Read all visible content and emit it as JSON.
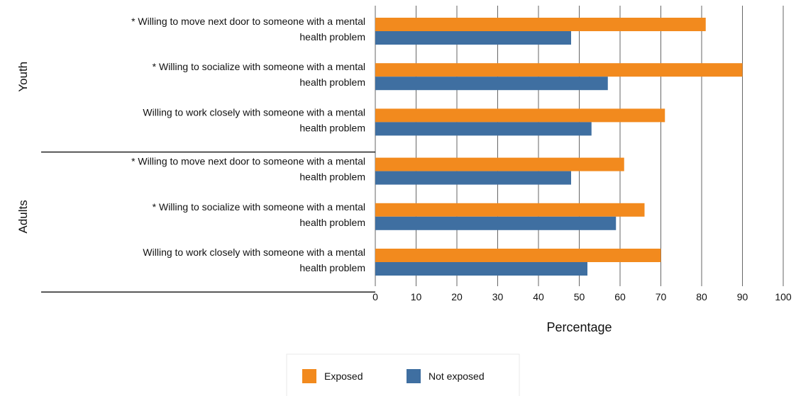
{
  "chart_data": {
    "type": "bar",
    "orientation": "horizontal",
    "groups": [
      {
        "name": "Youth",
        "categories": [
          [
            "* Willing to move next door to someone with a mental",
            "health problem"
          ],
          [
            "* Willing to socialize with someone with a mental",
            "health problem"
          ],
          [
            "Willing to work closely with someone with a mental",
            "health problem"
          ]
        ]
      },
      {
        "name": "Adults",
        "categories": [
          [
            "* Willing to move next door to someone with a mental",
            "health problem"
          ],
          [
            "* Willing to socialize with someone with a mental",
            "health problem"
          ],
          [
            "Willing to work closely with someone with a mental",
            "health problem"
          ]
        ]
      }
    ],
    "series": [
      {
        "name": "Exposed",
        "color": "#f28a1e",
        "values": [
          81,
          90,
          71,
          61,
          66,
          70
        ]
      },
      {
        "name": "Not exposed",
        "color": "#3f6fa1",
        "values": [
          48,
          57,
          53,
          48,
          59,
          52
        ]
      }
    ],
    "xlabel": "Percentage",
    "xlim": [
      0,
      100
    ],
    "xticks": [
      0,
      10,
      20,
      30,
      40,
      50,
      60,
      70,
      80,
      90,
      100
    ],
    "grid": "vertical",
    "legend": "bottom-center"
  }
}
